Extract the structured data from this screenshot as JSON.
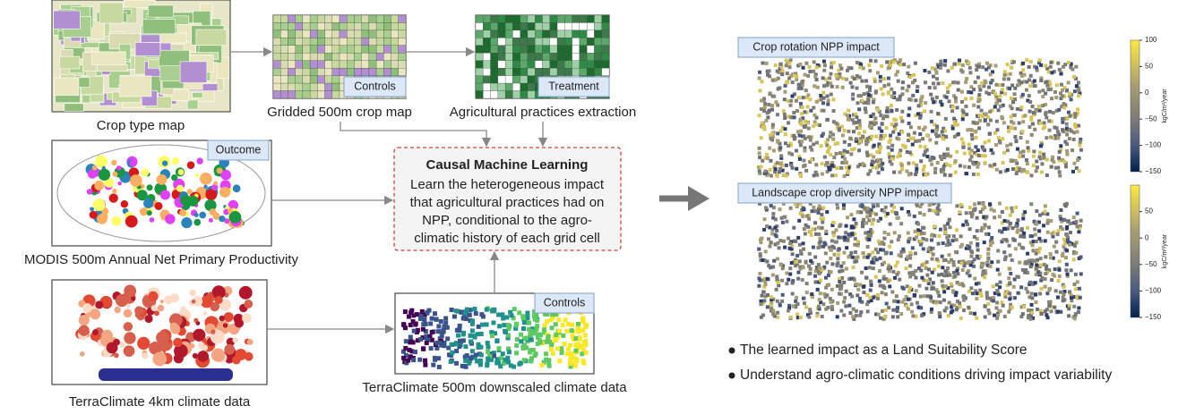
{
  "inputs": {
    "crop_type_map": {
      "label": "Crop type map"
    },
    "gridded_crop_map": {
      "label": "Gridded 500m crop map",
      "badge": "Controls"
    },
    "practices": {
      "label": "Agricultural practices extraction",
      "badge": "Treatment"
    },
    "modis": {
      "label": "MODIS 500m Annual Net Primary Productivity",
      "badge": "Outcome"
    },
    "terraclimate": {
      "label": "TerraClimate 4km climate data"
    },
    "downscaled": {
      "label": "TerraClimate 500m downscaled climate data",
      "badge": "Controls"
    }
  },
  "model": {
    "title": "Causal Machine Learning",
    "lines": [
      "Learn the heterogeneous impact",
      "that agricultural practices had on",
      "NPP, conditional to the agro-",
      "climatic history of each grid cell"
    ]
  },
  "outputs": [
    {
      "title": "Crop rotation NPP impact",
      "colorbar_label": "kgC/m²/year",
      "ticks": [
        100,
        50,
        0,
        {
          "value": -50,
          "label": "−50"
        },
        {
          "value": -100,
          "label": "−100"
        },
        {
          "value": -150,
          "label": "−150"
        }
      ]
    },
    {
      "title": "Landscape crop diversity NPP impact",
      "colorbar_label": "kgC/m²/year",
      "ticks": [
        50,
        0,
        {
          "value": -50,
          "label": "−50"
        },
        {
          "value": -100,
          "label": "−100"
        },
        {
          "value": -150,
          "label": "−150"
        }
      ]
    }
  ],
  "bullets": [
    "The learned impact as a Land Suitability Score",
    "Understand agro-climatic conditions driving impact variability"
  ]
}
